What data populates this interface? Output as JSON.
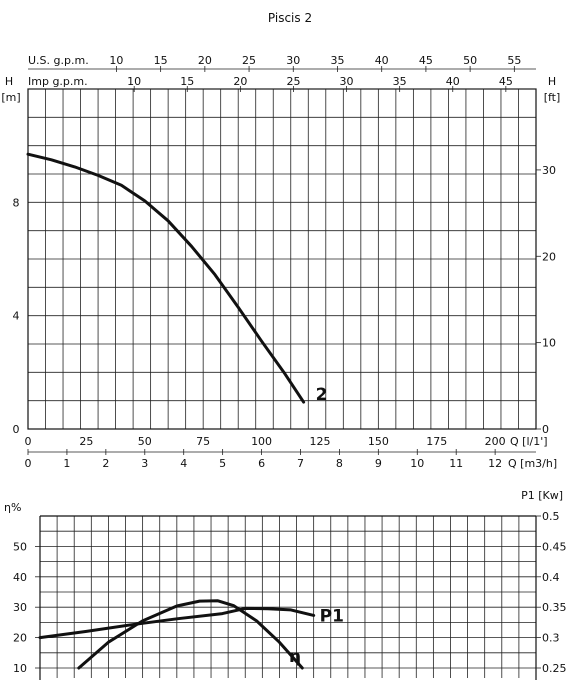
{
  "title": "Piscis 2",
  "chart_data": [
    {
      "type": "line",
      "name": "head-curve-chart",
      "x_axes": {
        "bottom_primary": {
          "label": "Q [l/1']",
          "range": [
            0,
            217.5
          ],
          "ticks": [
            0,
            25,
            50,
            75,
            100,
            125,
            150,
            175,
            200
          ]
        },
        "bottom_secondary": {
          "label": "Q [m3/h]",
          "range": [
            0,
            13.05
          ],
          "ticks": [
            0,
            1,
            2,
            3,
            4,
            5,
            6,
            7,
            8,
            9,
            10,
            11,
            12
          ]
        },
        "top_us": {
          "label": "U.S. g.p.m.",
          "range": [
            0,
            57.45
          ],
          "ticks": [
            10,
            15,
            20,
            25,
            30,
            35,
            40,
            45,
            50,
            55
          ]
        },
        "top_imp": {
          "label": "Imp g.p.m.",
          "range": [
            0,
            47.84
          ],
          "ticks": [
            10,
            15,
            20,
            25,
            30,
            35,
            40,
            45
          ]
        }
      },
      "y_axes": {
        "left": {
          "label": "[m]",
          "title": "H",
          "range": [
            0,
            12
          ],
          "ticks": [
            0,
            4,
            8
          ]
        },
        "right": {
          "label": "[ft]",
          "title": "H",
          "range": [
            0,
            39.37
          ],
          "ticks": [
            0,
            10,
            20,
            30
          ]
        }
      },
      "grid": true,
      "series": [
        {
          "name": "2",
          "x": [
            0,
            10,
            20,
            30,
            40,
            50,
            60,
            70,
            80,
            90,
            100,
            110,
            118
          ],
          "y": [
            9.7,
            9.5,
            9.25,
            8.95,
            8.6,
            8.05,
            7.35,
            6.45,
            5.45,
            4.3,
            3.1,
            1.95,
            0.95
          ]
        }
      ]
    },
    {
      "type": "line",
      "name": "efficiency-power-chart",
      "y_axes": {
        "left": {
          "label": "η%",
          "range": [
            10,
            60
          ],
          "ticks": [
            10,
            20,
            30,
            40,
            50
          ]
        },
        "right": {
          "label": "P1 [Kw]",
          "range": [
            0.25,
            0.5
          ],
          "ticks": [
            0.25,
            0.3,
            0.35,
            0.4,
            0.45,
            0.5
          ]
        }
      },
      "grid": true,
      "series": [
        {
          "name": "P1",
          "axis": "right",
          "x": [
            0,
            20,
            40,
            60,
            80,
            90,
            100,
            110,
            120
          ],
          "y": [
            0.3,
            0.31,
            0.321,
            0.331,
            0.3395,
            0.348,
            0.3475,
            0.3455,
            0.3365
          ]
        },
        {
          "name": "η",
          "axis": "left",
          "x": [
            17,
            30,
            45,
            60,
            70,
            78,
            85,
            95,
            105,
            115
          ],
          "y": [
            10,
            18.5,
            25.5,
            30.4,
            32,
            32.1,
            30.5,
            25.5,
            18.5,
            10
          ]
        }
      ]
    }
  ]
}
